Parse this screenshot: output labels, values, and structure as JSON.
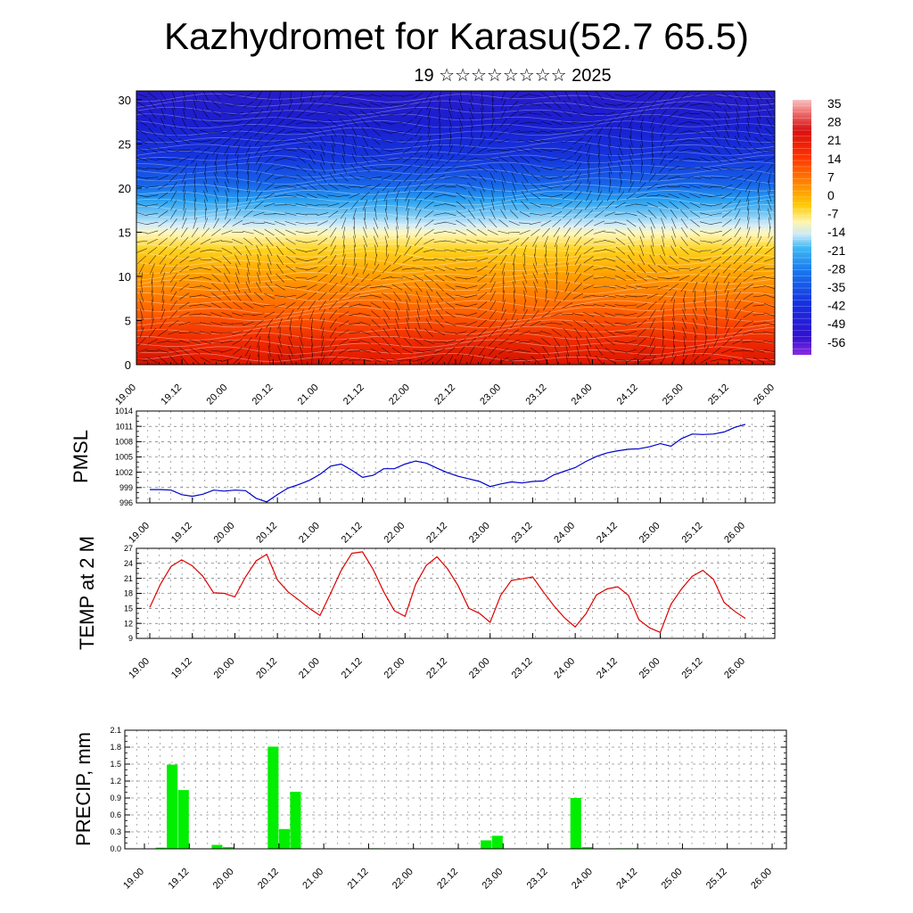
{
  "title": "Kazhydromet for Karasu(52.7 65.5)",
  "subtitle": "19 ☆☆☆☆☆☆☆☆ 2025",
  "x_ticks": [
    "19.00",
    "19.12",
    "20.00",
    "20.12",
    "21.00",
    "21.12",
    "22.00",
    "22.12",
    "23.00",
    "23.12",
    "24.00",
    "24.12",
    "25.00",
    "25.12",
    "26.00"
  ],
  "colors": {
    "pmsl": "#0000cc",
    "temp": "#dd0000",
    "precip": "#00ee00"
  },
  "chart_data": [
    {
      "type": "heatmap",
      "name_hidden": "temperature cross-section",
      "y_ticks": [
        "0",
        "5",
        "10",
        "15",
        "20",
        "25",
        "30"
      ],
      "ylim": [
        0,
        31
      ],
      "colorbar_labels": [
        "35",
        "28",
        "21",
        "14",
        "7",
        "0",
        "-7",
        "-14",
        "-21",
        "-28",
        "-35",
        "-42",
        "-49",
        "-56"
      ],
      "colorbar_range": [
        -63,
        42
      ]
    },
    {
      "type": "line",
      "ylabel": "PMSL",
      "ylim": [
        996,
        1014
      ],
      "y_ticks": [
        "996",
        "999",
        "1002",
        "1005",
        "1008",
        "1011",
        "1014"
      ],
      "x": [
        0,
        1,
        2,
        3,
        4,
        5,
        6,
        7,
        8,
        9,
        10,
        11,
        12,
        13,
        14,
        15,
        16,
        17,
        18,
        19,
        20,
        21,
        22,
        23,
        24,
        25,
        26,
        27,
        28,
        29,
        30,
        31,
        32,
        33,
        34,
        35,
        36,
        37,
        38,
        39,
        40,
        41,
        42,
        43,
        44,
        45,
        46,
        47,
        48,
        49,
        50,
        51,
        52,
        53,
        54,
        55,
        56
      ],
      "values": [
        998.6,
        998.6,
        998.5,
        997.6,
        997.3,
        997.7,
        998.5,
        998.3,
        998.5,
        998.4,
        996.9,
        996.2,
        997.6,
        998.9,
        999.6,
        1000.4,
        1001.6,
        1003.2,
        1003.6,
        1002.4,
        1001.0,
        1001.4,
        1002.7,
        1002.7,
        1003.6,
        1004.2,
        1003.8,
        1002.8,
        1001.9,
        1001.2,
        1000.7,
        1000.2,
        999.2,
        999.7,
        1000.1,
        999.9,
        1000.2,
        1000.3,
        1001.5,
        1002.2,
        1002.9,
        1004.1,
        1005.1,
        1005.8,
        1006.2,
        1006.5,
        1006.6,
        1007.0,
        1007.6,
        1007.1,
        1008.6,
        1009.5,
        1009.4,
        1009.5,
        1009.9,
        1010.8,
        1011.4
      ]
    },
    {
      "type": "line",
      "ylabel": "TEMP at 2 M",
      "ylim": [
        9,
        27
      ],
      "y_ticks": [
        "9",
        "12",
        "15",
        "18",
        "21",
        "24",
        "27"
      ],
      "x": [
        0,
        1,
        2,
        3,
        4,
        5,
        6,
        7,
        8,
        9,
        10,
        11,
        12,
        13,
        14,
        15,
        16,
        17,
        18,
        19,
        20,
        21,
        22,
        23,
        24,
        25,
        26,
        27,
        28,
        29,
        30,
        31,
        32,
        33,
        34,
        35,
        36,
        37,
        38,
        39,
        40,
        41,
        42,
        43,
        44,
        45,
        46,
        47,
        48,
        49,
        50,
        51,
        52,
        53,
        54,
        55,
        56
      ],
      "values": [
        15.2,
        19.8,
        23.4,
        24.7,
        23.5,
        21.4,
        18.1,
        18.0,
        17.3,
        21.3,
        24.5,
        25.8,
        20.7,
        18.3,
        16.7,
        15.0,
        13.6,
        18.0,
        22.6,
        26.0,
        26.3,
        22.8,
        18.3,
        14.5,
        13.4,
        19.8,
        23.6,
        25.3,
        22.9,
        19.5,
        15.0,
        14.0,
        12.2,
        17.6,
        20.6,
        20.9,
        21.3,
        18.3,
        15.5,
        13.1,
        11.3,
        13.9,
        17.7,
        18.9,
        19.3,
        17.6,
        12.7,
        11.1,
        10.2,
        15.8,
        18.9,
        21.4,
        22.6,
        20.8,
        16.2,
        14.4,
        13.0
      ]
    },
    {
      "type": "bar",
      "ylabel": "PRECIP, mm",
      "ylim": [
        0,
        2.1
      ],
      "y_ticks": [
        "0.0",
        "0.3",
        "0.6",
        "0.9",
        "1.2",
        "1.5",
        "1.8",
        "2.1"
      ],
      "x": [
        0,
        1,
        2,
        3,
        4,
        5,
        6,
        7,
        8,
        9,
        10,
        11,
        12,
        13,
        14,
        15,
        16,
        17,
        18,
        19,
        20,
        21,
        22,
        23,
        24,
        25,
        26,
        27,
        28,
        29,
        30,
        31,
        32,
        33,
        34,
        35,
        36,
        37,
        38,
        39,
        40,
        41,
        42,
        43,
        44,
        45,
        46,
        47,
        48,
        49,
        50,
        51,
        52,
        53,
        54,
        55,
        56
      ],
      "values": [
        0.0,
        0.02,
        1.49,
        1.04,
        0.0,
        0.0,
        0.07,
        0.03,
        0.0,
        0.0,
        0.0,
        1.81,
        0.35,
        1.01,
        0.0,
        0.0,
        0.0,
        0.0,
        0.0,
        0.0,
        0.01,
        0.0,
        0.0,
        0.0,
        0.0,
        0.0,
        0.0,
        0.0,
        0.0,
        0.0,
        0.15,
        0.23,
        0.0,
        0.0,
        0.0,
        0.0,
        0.0,
        0.0,
        0.9,
        0.03,
        0.0,
        0.0,
        0.01,
        0.01,
        0.0,
        0.0,
        0.0,
        0.0,
        0.0,
        0.0,
        0.0,
        0.0,
        0.0,
        0.0,
        0.0,
        0.0,
        0.0
      ]
    }
  ]
}
